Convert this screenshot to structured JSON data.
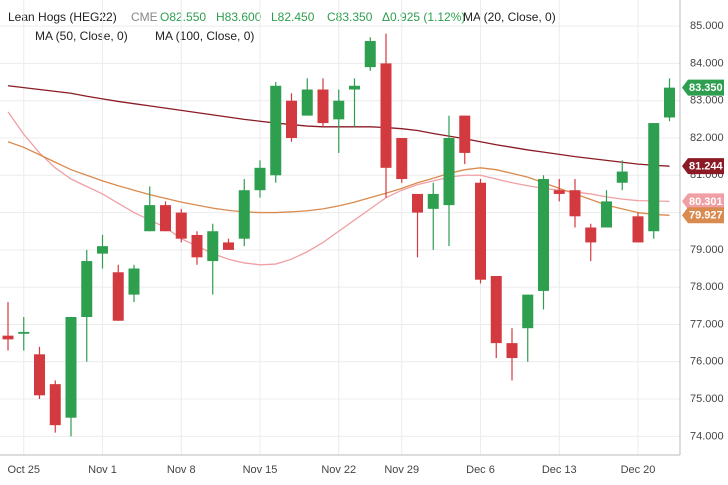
{
  "chart_data": {
    "type": "candlestick",
    "header": {
      "symbol": "Lean Hogs (HEG22)",
      "exchange": "CME",
      "open": "O82.550",
      "high": "H83.600",
      "low": "L82.450",
      "close": "C83.350",
      "change": "Δ0.925 (1.12%)"
    },
    "categories": [
      null,
      "Oct 25",
      null,
      null,
      null,
      null,
      "Nov 1",
      null,
      null,
      null,
      null,
      "Nov 8",
      null,
      null,
      null,
      null,
      "Nov 15",
      null,
      null,
      null,
      null,
      "Nov 22",
      null,
      null,
      null,
      "Nov 29",
      null,
      null,
      null,
      null,
      "Dec 6",
      null,
      null,
      null,
      null,
      "Dec 13",
      null,
      null,
      null,
      null,
      "Dec 20",
      null,
      null
    ],
    "open": [
      76.7,
      76.75,
      76.2,
      75.4,
      74.5,
      77.2,
      78.9,
      78.4,
      77.8,
      79.5,
      80.2,
      80.0,
      79.4,
      78.7,
      79.2,
      79.3,
      80.6,
      81.0,
      83.0,
      82.6,
      83.3,
      82.5,
      83.3,
      83.9,
      84.0,
      82.0,
      80.5,
      80.1,
      80.2,
      82.6,
      80.8,
      78.3,
      76.5,
      76.9,
      77.9,
      80.6,
      80.6,
      79.6,
      79.6,
      80.8,
      79.9,
      79.5,
      82.55
    ],
    "high": [
      77.6,
      77.2,
      76.4,
      75.5,
      77.2,
      79.0,
      79.4,
      78.6,
      78.6,
      80.7,
      80.3,
      80.1,
      79.5,
      79.7,
      79.3,
      80.9,
      81.4,
      83.5,
      83.2,
      83.6,
      83.6,
      83.3,
      83.6,
      84.7,
      84.8,
      82.0,
      80.5,
      80.8,
      82.6,
      82.6,
      80.9,
      78.3,
      76.9,
      77.8,
      81.0,
      80.9,
      80.9,
      79.7,
      80.6,
      81.4,
      80.0,
      82.4,
      83.6
    ],
    "low": [
      76.3,
      76.3,
      75.0,
      74.1,
      74.0,
      76.0,
      78.5,
      77.1,
      77.6,
      79.5,
      79.5,
      79.2,
      78.6,
      77.8,
      79.0,
      79.1,
      80.4,
      80.8,
      81.9,
      82.6,
      82.3,
      81.6,
      82.3,
      83.8,
      80.4,
      80.8,
      78.8,
      79.0,
      79.1,
      81.3,
      78.1,
      76.1,
      75.5,
      76.0,
      77.4,
      80.3,
      79.6,
      78.7,
      79.6,
      80.6,
      79.2,
      79.3,
      82.45
    ],
    "close": [
      76.6,
      76.8,
      75.1,
      74.3,
      77.2,
      78.7,
      79.1,
      77.1,
      78.5,
      80.2,
      79.5,
      79.3,
      78.8,
      79.5,
      79.0,
      80.6,
      81.2,
      83.4,
      82.0,
      83.3,
      82.4,
      83.0,
      83.4,
      84.6,
      81.2,
      80.9,
      80.0,
      80.5,
      82.0,
      81.6,
      78.2,
      76.5,
      76.1,
      77.8,
      80.9,
      80.5,
      79.9,
      79.2,
      80.3,
      81.1,
      79.2,
      82.4,
      83.35
    ],
    "up_color": "#2e9e4f",
    "down_color": "#d33a3f",
    "close_label": "83.350",
    "series": [
      {
        "name": "MA (20, Close, 0)",
        "color": "#f0a0a4",
        "values": [
          82.7,
          82.1,
          81.6,
          81.2,
          80.9,
          80.7,
          80.5,
          80.25,
          80.0,
          79.8,
          79.6,
          79.3,
          79.1,
          78.9,
          78.75,
          78.65,
          78.6,
          78.62,
          78.75,
          78.95,
          79.2,
          79.5,
          79.8,
          80.1,
          80.4,
          80.6,
          80.75,
          80.85,
          80.95,
          81.0,
          81.0,
          80.9,
          80.8,
          80.72,
          80.65,
          80.6,
          80.55,
          80.5,
          80.42,
          80.36,
          80.32,
          80.31,
          80.301
        ]
      },
      {
        "name": "MA (50, Close, 0)",
        "color": "#d98a4e",
        "values": [
          81.9,
          81.75,
          81.55,
          81.35,
          81.15,
          81.0,
          80.85,
          80.72,
          80.6,
          80.48,
          80.38,
          80.28,
          80.2,
          80.12,
          80.06,
          80.02,
          80.0,
          80.0,
          80.02,
          80.05,
          80.1,
          80.18,
          80.28,
          80.4,
          80.52,
          80.65,
          80.8,
          80.92,
          81.05,
          81.15,
          81.2,
          81.15,
          81.05,
          80.95,
          80.8,
          80.65,
          80.5,
          80.35,
          80.2,
          80.1,
          80.0,
          79.95,
          79.927
        ]
      },
      {
        "name": "MA (100, Close, 0)",
        "color": "#8b1a24",
        "values": [
          83.4,
          83.35,
          83.3,
          83.25,
          83.2,
          83.12,
          83.05,
          82.98,
          82.92,
          82.86,
          82.8,
          82.74,
          82.68,
          82.62,
          82.56,
          82.5,
          82.45,
          82.4,
          82.36,
          82.32,
          82.3,
          82.3,
          82.3,
          82.3,
          82.28,
          82.25,
          82.2,
          82.12,
          82.05,
          81.98,
          81.9,
          81.82,
          81.75,
          81.68,
          81.62,
          81.56,
          81.5,
          81.45,
          81.4,
          81.35,
          81.3,
          81.27,
          81.244
        ]
      }
    ],
    "ylim": [
      73.5,
      85.7
    ],
    "yticks": [
      {
        "value": 74,
        "label": "74.000"
      },
      {
        "value": 75,
        "label": "75.000"
      },
      {
        "value": 76,
        "label": "76.000"
      },
      {
        "value": 77,
        "label": "77.000"
      },
      {
        "value": 78,
        "label": "78.000"
      },
      {
        "value": 79,
        "label": "79.000"
      },
      {
        "value": 80,
        "label": "80.000"
      },
      {
        "value": 81,
        "label": "81.000"
      },
      {
        "value": 82,
        "label": "82.000"
      },
      {
        "value": 83,
        "label": "83.000"
      },
      {
        "value": 84,
        "label": "84.000"
      },
      {
        "value": 85,
        "label": "85.000"
      }
    ],
    "grid": true
  }
}
